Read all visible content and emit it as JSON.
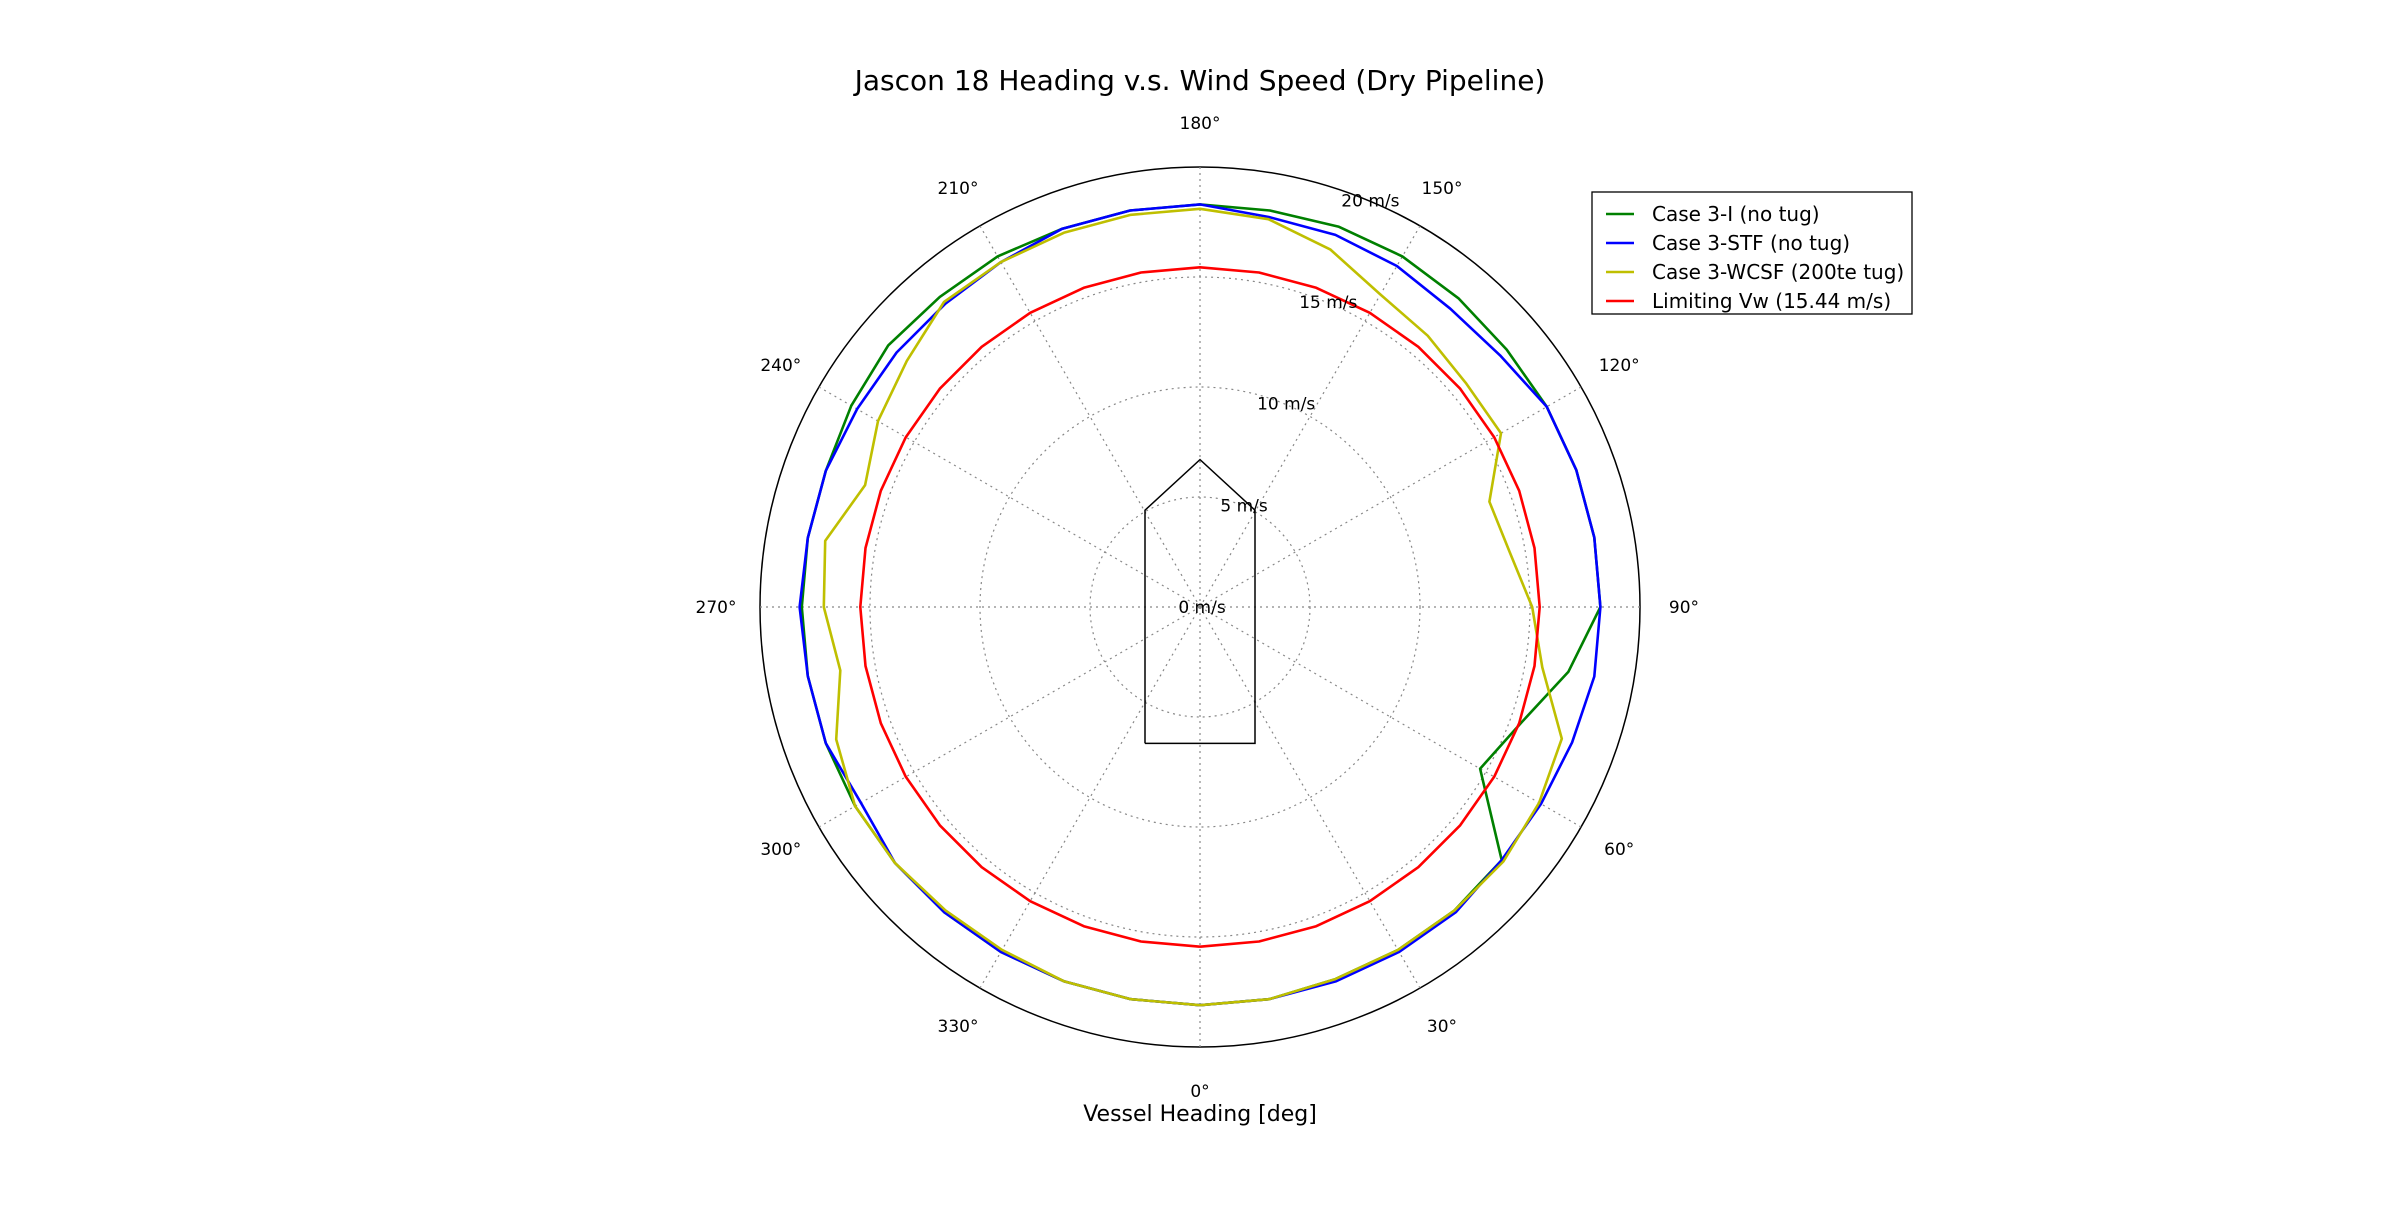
{
  "chart_data": {
    "type": "polar-line",
    "title": "Jascon 18 Heading v.s. Wind Speed (Dry Pipeline)",
    "xlabel": "Vessel Heading [deg]",
    "theta_zero_location": "bottom",
    "theta_direction": "counterclockwise",
    "r_lim": [
      0,
      20
    ],
    "r_ticks": [
      0,
      5,
      10,
      15,
      20
    ],
    "r_tick_labels": [
      "0 m/s",
      "5 m/s",
      "10 m/s",
      "15 m/s",
      "20 m/s"
    ],
    "theta_ticks": [
      0,
      30,
      60,
      90,
      120,
      150,
      180,
      210,
      240,
      270,
      300,
      330
    ],
    "theta_tick_labels": [
      "0°",
      "30°",
      "60°",
      "90°",
      "120°",
      "150°",
      "180°",
      "210°",
      "240°",
      "270°",
      "300°",
      "330°"
    ],
    "grid": true,
    "legend_position": "top-right",
    "theta": [
      0,
      10,
      20,
      30,
      40,
      50,
      60,
      70,
      80,
      90,
      100,
      110,
      120,
      130,
      140,
      150,
      160,
      170,
      180,
      190,
      200,
      210,
      220,
      230,
      240,
      250,
      260,
      270,
      280,
      290,
      300,
      310,
      320,
      330,
      340,
      350,
      360
    ],
    "series": [
      {
        "name": "Case 3-I (no tug)",
        "color": "#008000",
        "r": [
          18.1,
          18.1,
          18.0,
          18.0,
          18.0,
          17.9,
          14.7,
          15.5,
          17.0,
          18.2,
          18.2,
          18.2,
          18.2,
          18.2,
          18.3,
          18.4,
          18.4,
          18.3,
          18.3,
          18.3,
          18.3,
          18.4,
          18.4,
          18.5,
          18.3,
          18.1,
          18.1,
          18.1,
          18.1,
          18.1,
          18.1,
          18.1,
          18.1,
          18.1,
          18.1,
          18.1,
          18.1
        ]
      },
      {
        "name": "Case 3-STF (no tug)",
        "color": "#0000ff",
        "r": [
          18.1,
          18.1,
          18.1,
          18.1,
          18.1,
          17.9,
          17.9,
          18.0,
          18.2,
          18.2,
          18.2,
          18.2,
          18.2,
          17.8,
          17.7,
          17.9,
          18.0,
          18.0,
          18.3,
          18.3,
          18.3,
          18.1,
          18.0,
          18.0,
          18.0,
          18.1,
          18.1,
          18.2,
          18.1,
          18.1,
          17.8,
          18.1,
          18.1,
          18.1,
          18.1,
          18.1,
          18.1
        ]
      },
      {
        "name": "Case 3-WCSF (200te tug)",
        "color": "#bfbf00",
        "r": [
          18.1,
          18.1,
          18.0,
          18.0,
          18.0,
          18.0,
          17.8,
          17.5,
          15.8,
          15.1,
          14.3,
          14.0,
          15.8,
          15.8,
          16.1,
          16.4,
          17.3,
          17.9,
          18.1,
          18.1,
          18.1,
          18.1,
          18.1,
          17.4,
          16.9,
          16.2,
          17.3,
          17.1,
          16.6,
          17.6,
          18.1,
          18.1,
          18.0,
          18.0,
          18.1,
          18.1,
          18.1
        ]
      },
      {
        "name": "Limiting Vw (15.44 m/s)",
        "color": "#ff0000",
        "r": [
          15.44,
          15.44,
          15.44,
          15.44,
          15.44,
          15.44,
          15.44,
          15.44,
          15.44,
          15.44,
          15.44,
          15.44,
          15.44,
          15.44,
          15.44,
          15.44,
          15.44,
          15.44,
          15.44,
          15.44,
          15.44,
          15.44,
          15.44,
          15.44,
          15.44,
          15.44,
          15.44,
          15.44,
          15.44,
          15.44,
          15.44,
          15.44,
          15.44,
          15.44,
          15.44,
          15.44,
          15.44
        ]
      }
    ],
    "vessel_outline": {
      "color": "#000000",
      "x": [
        -2.5,
        -2.5,
        0,
        2.5,
        2.5,
        -2.5
      ],
      "y": [
        -6.2,
        4.4,
        6.7,
        4.4,
        -6.2,
        -6.2
      ]
    }
  }
}
